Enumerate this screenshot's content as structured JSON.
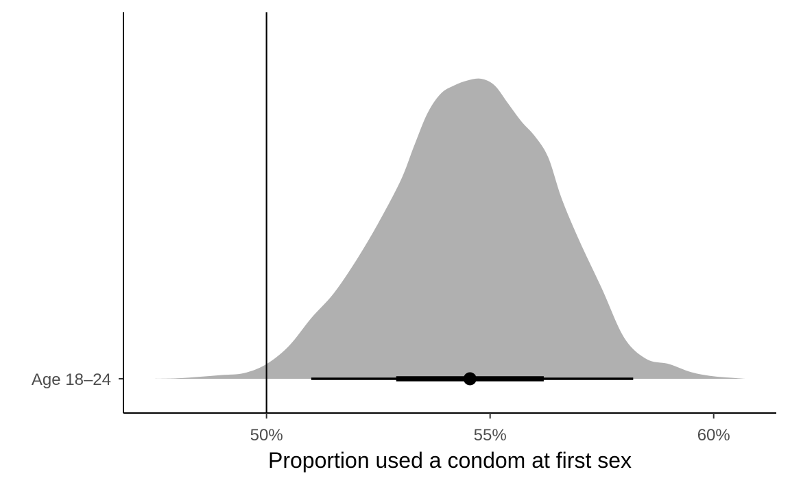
{
  "chart_data": {
    "type": "area",
    "title": "",
    "xlabel": "Proportion used a condom at first sex",
    "ylabel": "",
    "xlim": [
      46.8,
      61.4
    ],
    "x_ticks": [
      {
        "value": 50,
        "label": "50%"
      },
      {
        "value": 55,
        "label": "55%"
      },
      {
        "value": 60,
        "label": "60%"
      }
    ],
    "categories": [
      "Age 18–24"
    ],
    "reference_line_x": 50,
    "grid": false,
    "legend": "none",
    "fill_color": "#b0b0b0",
    "series": [
      {
        "category": "Age 18–24",
        "density": {
          "x": [
            47.5,
            48.0,
            48.5,
            49.0,
            49.5,
            50.0,
            50.5,
            51.0,
            51.5,
            52.0,
            52.5,
            53.0,
            53.3,
            53.6,
            53.9,
            54.2,
            54.5,
            54.8,
            55.1,
            55.4,
            55.7,
            56.0,
            56.3,
            56.6,
            57.0,
            57.5,
            58.0,
            58.5,
            59.0,
            59.5,
            60.0,
            60.5,
            60.7
          ],
          "y": [
            0.0,
            0.003,
            0.012,
            0.023,
            0.035,
            0.09,
            0.2,
            0.37,
            0.52,
            0.72,
            0.95,
            1.21,
            1.42,
            1.62,
            1.74,
            1.79,
            1.82,
            1.83,
            1.79,
            1.68,
            1.57,
            1.48,
            1.35,
            1.1,
            0.84,
            0.55,
            0.25,
            0.12,
            0.09,
            0.04,
            0.015,
            0.004,
            0.0
          ]
        },
        "point": 54.55,
        "interval_inner": [
          52.9,
          56.2
        ],
        "interval_outer": [
          51.0,
          58.2
        ]
      }
    ]
  }
}
